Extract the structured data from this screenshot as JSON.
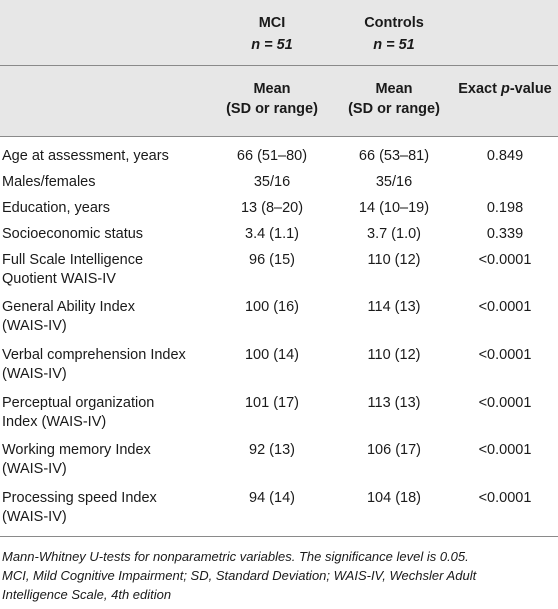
{
  "table": {
    "groups": [
      {
        "name": "MCI",
        "n": "n = 51"
      },
      {
        "name": "Controls",
        "n": "n = 51"
      }
    ],
    "subheaders": {
      "mci": [
        "Mean",
        "(SD or range)"
      ],
      "controls": [
        "Mean",
        "(SD or range)"
      ],
      "p": "Exact p-value"
    },
    "rows": [
      {
        "label": [
          "Age at assessment, years"
        ],
        "mci": "66 (51–80)",
        "controls": "66 (53–81)",
        "p": "0.849"
      },
      {
        "label": [
          "Males/females"
        ],
        "mci": "35/16",
        "controls": "35/16",
        "p": ""
      },
      {
        "label": [
          "Education, years"
        ],
        "mci": "13 (8–20)",
        "controls": "14 (10–19)",
        "p": "0.198"
      },
      {
        "label": [
          "Socioeconomic status"
        ],
        "mci": "3.4 (1.1)",
        "controls": "3.7 (1.0)",
        "p": "0.339"
      },
      {
        "label": [
          "Full Scale Intelligence",
          "Quotient WAIS-IV"
        ],
        "mci": "96 (15)",
        "controls": "110 (12)",
        "p": "<0.0001"
      },
      {
        "label": [
          "General Ability Index",
          "(WAIS-IV)"
        ],
        "mci": "100 (16)",
        "controls": "114 (13)",
        "p": "<0.0001"
      },
      {
        "label": [
          "Verbal comprehension Index",
          "(WAIS-IV)"
        ],
        "mci": "100 (14)",
        "controls": "110 (12)",
        "p": "<0.0001"
      },
      {
        "label": [
          "Perceptual organization",
          "Index (WAIS-IV)"
        ],
        "mci": "101 (17)",
        "controls": "113 (13)",
        "p": "<0.0001"
      },
      {
        "label": [
          "Working memory Index",
          "(WAIS-IV)"
        ],
        "mci": "92 (13)",
        "controls": "106 (17)",
        "p": "<0.0001"
      },
      {
        "label": [
          "Processing speed Index",
          "(WAIS-IV)"
        ],
        "mci": "94 (14)",
        "controls": "104 (18)",
        "p": "<0.0001"
      }
    ]
  },
  "footnotes": [
    "Mann-Whitney U-tests for nonparametric variables. The significance level is 0.05.",
    "MCI, Mild Cognitive Impairment; SD, Standard Deviation; WAIS-IV, Wechsler Adult",
    "Intelligence Scale, 4th edition"
  ]
}
